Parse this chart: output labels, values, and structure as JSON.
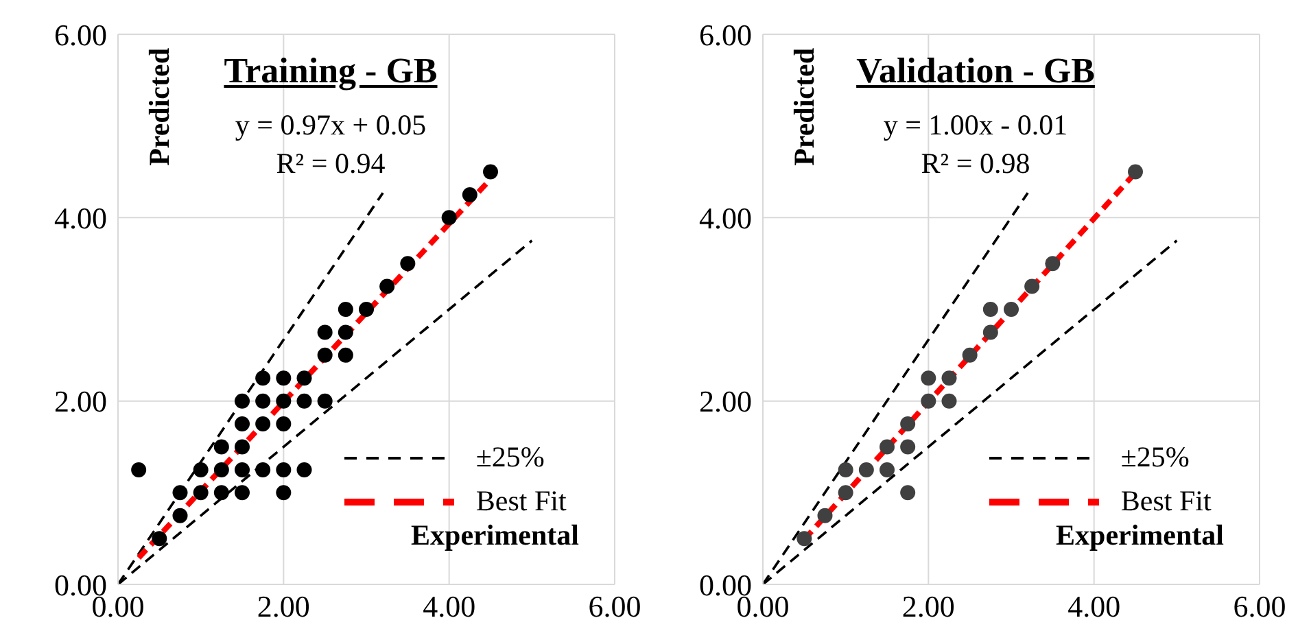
{
  "chart_data": [
    {
      "type": "scatter",
      "title": "Training - GB",
      "xlabel": "Experimental",
      "ylabel": "Predicted",
      "annotations": [
        "y = 0.97x + 0.05",
        "R² = 0.94"
      ],
      "xlim": [
        0,
        6
      ],
      "ylim": [
        0,
        6
      ],
      "xticks": [
        {
          "value": 0,
          "label": "0.00"
        },
        {
          "value": 2,
          "label": "2.00"
        },
        {
          "value": 4,
          "label": "4.00"
        },
        {
          "value": 6,
          "label": "6.00"
        }
      ],
      "yticks": [
        {
          "value": 0,
          "label": "0.00"
        },
        {
          "value": 2,
          "label": "2.00"
        },
        {
          "value": 4,
          "label": "4.00"
        },
        {
          "value": 6,
          "label": "6.00"
        }
      ],
      "grid": true,
      "legend": "bottom right",
      "marker": "circle",
      "series": [
        {
          "color": "#000000",
          "x": [
            0.25,
            0.5,
            0.75,
            0.75,
            1,
            1,
            1.25,
            1.25,
            1.25,
            1.5,
            1.5,
            1.5,
            1.5,
            1.5,
            1.75,
            1.75,
            1.75,
            1.75,
            2,
            2,
            2,
            2,
            2,
            2.25,
            2.25,
            2.25,
            2.5,
            2.5,
            2.5,
            2.75,
            2.75,
            2.75,
            3,
            3.25,
            3.5,
            4,
            4.25,
            4.5
          ],
          "values": [
            1.25,
            0.5,
            1,
            0.75,
            1.25,
            1,
            1.5,
            1.25,
            1,
            2,
            1.75,
            1.5,
            1.25,
            1,
            2.25,
            2,
            1.75,
            1.25,
            2.25,
            2,
            1.75,
            1.25,
            1,
            2.25,
            2,
            1.25,
            2,
            2.5,
            2.75,
            3,
            2.75,
            2.5,
            3,
            3.25,
            3.5,
            4,
            4.25,
            4.5
          ]
        },
        {
          "type": "line",
          "name": "±25%",
          "color": "#000000",
          "line_style": "dashed",
          "marker": "none",
          "x": [
            0,
            3.2
          ],
          "values": [
            0,
            4.27
          ]
        },
        {
          "type": "line",
          "color": "#000000",
          "line_style": "dashed",
          "marker": "none",
          "x": [
            0,
            5
          ],
          "values": [
            0,
            3.75
          ]
        },
        {
          "type": "line",
          "name": "Best Fit",
          "color": "#ff0000",
          "line_style": "dashed",
          "marker": "none",
          "x": [
            0.25,
            4.5
          ],
          "values": [
            0.29,
            4.42
          ]
        }
      ]
    },
    {
      "type": "scatter",
      "title": "Validation - GB",
      "xlabel": "Experimental",
      "ylabel": "Predicted",
      "annotations": [
        "y = 1.00x - 0.01",
        "R² = 0.98"
      ],
      "xlim": [
        0,
        6
      ],
      "ylim": [
        0,
        6
      ],
      "xticks": [
        {
          "value": 0,
          "label": "0.00"
        },
        {
          "value": 2,
          "label": "2.00"
        },
        {
          "value": 4,
          "label": "4.00"
        },
        {
          "value": 6,
          "label": "6.00"
        }
      ],
      "yticks": [
        {
          "value": 0,
          "label": "0.00"
        },
        {
          "value": 2,
          "label": "2.00"
        },
        {
          "value": 4,
          "label": "4.00"
        },
        {
          "value": 6,
          "label": "6.00"
        }
      ],
      "grid": true,
      "legend": "bottom right",
      "marker": "circle",
      "series": [
        {
          "color": "#404040",
          "x": [
            0.5,
            0.75,
            1,
            1,
            1.25,
            1.5,
            1.5,
            1.75,
            1.75,
            1.75,
            2,
            2,
            2.25,
            2.25,
            2.5,
            2.75,
            2.75,
            3,
            3.25,
            3.5,
            4.5
          ],
          "values": [
            0.5,
            0.75,
            1.25,
            1,
            1.25,
            1.5,
            1.25,
            1.75,
            1.5,
            1,
            2.25,
            2,
            2.25,
            2,
            2.5,
            3,
            2.75,
            3,
            3.25,
            3.5,
            4.5
          ]
        },
        {
          "type": "line",
          "name": "±25%",
          "color": "#000000",
          "line_style": "dashed",
          "marker": "none",
          "x": [
            0,
            3.2
          ],
          "values": [
            0,
            4.27
          ]
        },
        {
          "type": "line",
          "color": "#000000",
          "line_style": "dashed",
          "marker": "none",
          "x": [
            0,
            5
          ],
          "values": [
            0,
            3.75
          ]
        },
        {
          "type": "line",
          "name": "Best Fit",
          "color": "#ff0000",
          "line_style": "dashed",
          "marker": "none",
          "x": [
            0.5,
            4.5
          ],
          "values": [
            0.49,
            4.49
          ]
        }
      ]
    }
  ]
}
